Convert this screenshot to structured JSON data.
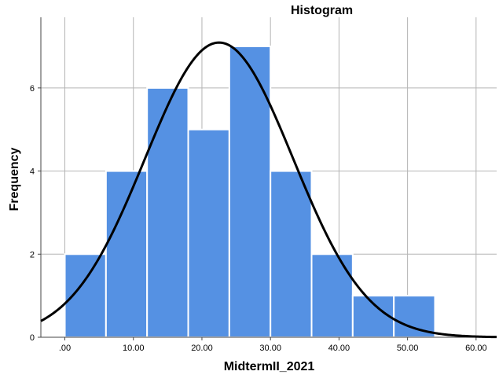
{
  "chart_data": {
    "type": "bar",
    "title": "Histogram",
    "xlabel": "MidtermII_2021",
    "ylabel": "Frequency",
    "bins": [
      {
        "from": 0,
        "to": 6,
        "count": 2
      },
      {
        "from": 6,
        "to": 12,
        "count": 4
      },
      {
        "from": 12,
        "to": 18,
        "count": 6
      },
      {
        "from": 18,
        "to": 24,
        "count": 5
      },
      {
        "from": 24,
        "to": 30,
        "count": 7
      },
      {
        "from": 30,
        "to": 36,
        "count": 4
      },
      {
        "from": 36,
        "to": 42,
        "count": 2
      },
      {
        "from": 42,
        "to": 48,
        "count": 1
      },
      {
        "from": 48,
        "to": 54,
        "count": 1
      }
    ],
    "x_ticks": [
      0,
      10,
      20,
      30,
      40,
      50,
      60
    ],
    "x_tick_labels": [
      ".00",
      "10.00",
      "20.00",
      "30.00",
      "40.00",
      "50.00",
      "60.00"
    ],
    "y_ticks": [
      0,
      2,
      4,
      6
    ],
    "y_tick_labels": [
      "0",
      "2",
      "4",
      "6"
    ],
    "xlim": [
      -3.5,
      63
    ],
    "ylim": [
      0,
      7.7
    ],
    "normal_curve": {
      "mean": 22.5,
      "std_dev": 10.8,
      "n": 32,
      "bin_width": 6
    },
    "grid": true,
    "colors": {
      "bar_fill": "#5591E3",
      "bar_edge": "#ffffff",
      "curve": "#000000",
      "grid": "#b4b4b4",
      "axis": "#444444"
    }
  }
}
